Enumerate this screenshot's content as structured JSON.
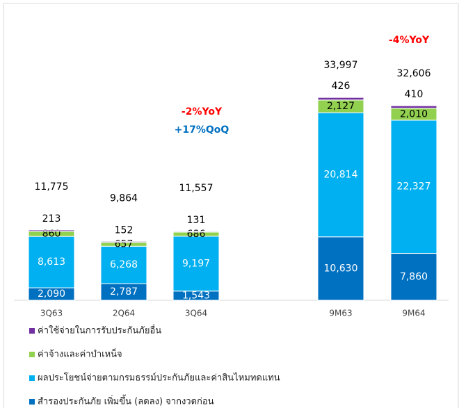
{
  "chart_data": {
    "type": "stacked_bar",
    "categories": [
      "3Q63",
      "2Q64",
      "3Q64",
      "9M63",
      "9M64"
    ],
    "series": [
      {
        "name": "สำรองประกันภัย เพิ่มขึ้น (ลดลง) จากงวดก่อน",
        "color": "#0070c0",
        "values": [
          2090,
          2787,
          1543,
          10630,
          7860
        ],
        "value_labels": [
          "2,090",
          "2,787",
          "1,543",
          "10,630",
          "7,860"
        ]
      },
      {
        "name": "ผลประโยชน์จ่ายตามกรมธรรม์ประกันภัยและค่าสินไหมทดแทน",
        "color": "#00b0f0",
        "values": [
          8613,
          6268,
          9197,
          20814,
          22327
        ],
        "value_labels": [
          "8,613",
          "6,268",
          "9,197",
          "20,814",
          "22,327"
        ]
      },
      {
        "name": "ค่าจ้างและค่าบำเหน็จ",
        "color": "#92d050",
        "values": [
          860,
          657,
          686,
          2127,
          2010
        ],
        "value_labels": [
          "860",
          "657",
          "686",
          "2,127",
          "2,010"
        ]
      },
      {
        "name": "ค่าใช้จ่ายในการรับประกันภัยอื่น",
        "color": "#7030a0",
        "values": [
          213,
          152,
          131,
          426,
          410
        ]
      }
    ],
    "totals": [
      11775,
      9864,
      11557,
      33997,
      32606
    ],
    "total_labels": [
      "11,775",
      "9,864",
      "11,557",
      "33,997",
      "32,606"
    ],
    "annotations": [
      {
        "text": "-2%YoY",
        "color": "#ff0000"
      },
      {
        "text": "+17%QoQ",
        "color": "#0070c0"
      },
      {
        "text": "-4%YoY",
        "color": "#ff0000"
      }
    ],
    "ylim": [
      0,
      48000
    ]
  }
}
